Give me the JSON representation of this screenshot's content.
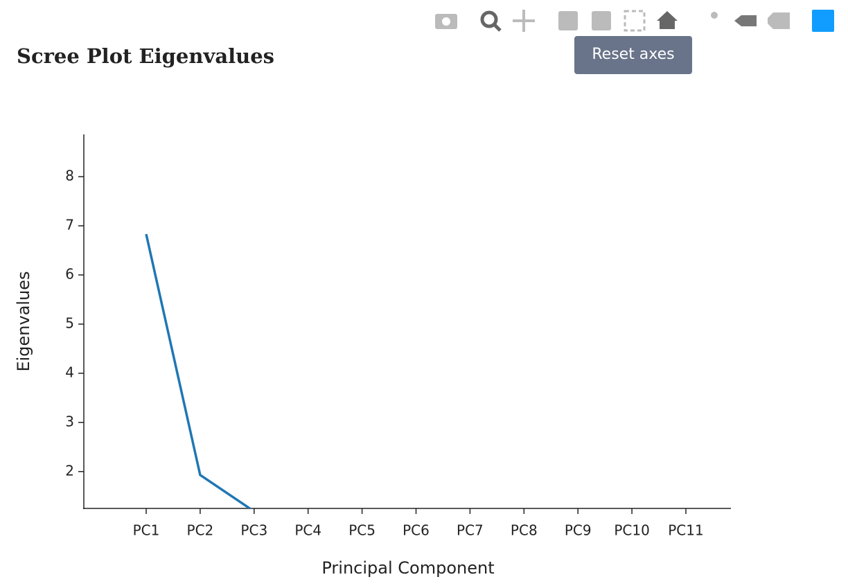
{
  "chart_data": {
    "type": "line",
    "title": "Scree Plot Eigenvalues",
    "x_label": "Principal Component",
    "y_label": "Eigenvalues",
    "categories": [
      "PC1",
      "PC2",
      "PC3",
      "PC4",
      "PC5",
      "PC6",
      "PC7",
      "PC8",
      "PC9",
      "PC10",
      "PC11"
    ],
    "series": [
      {
        "color": "#1f77b4",
        "values": [
          6.83,
          1.93,
          1.19,
          null,
          null,
          null,
          null,
          null,
          null,
          null,
          null
        ]
      }
    ],
    "ylim": [
      1.25,
      8.86
    ],
    "yticks": [
      2,
      3,
      4,
      5,
      6,
      7,
      8
    ],
    "grid": false
  },
  "tooltip": "Reset axes"
}
